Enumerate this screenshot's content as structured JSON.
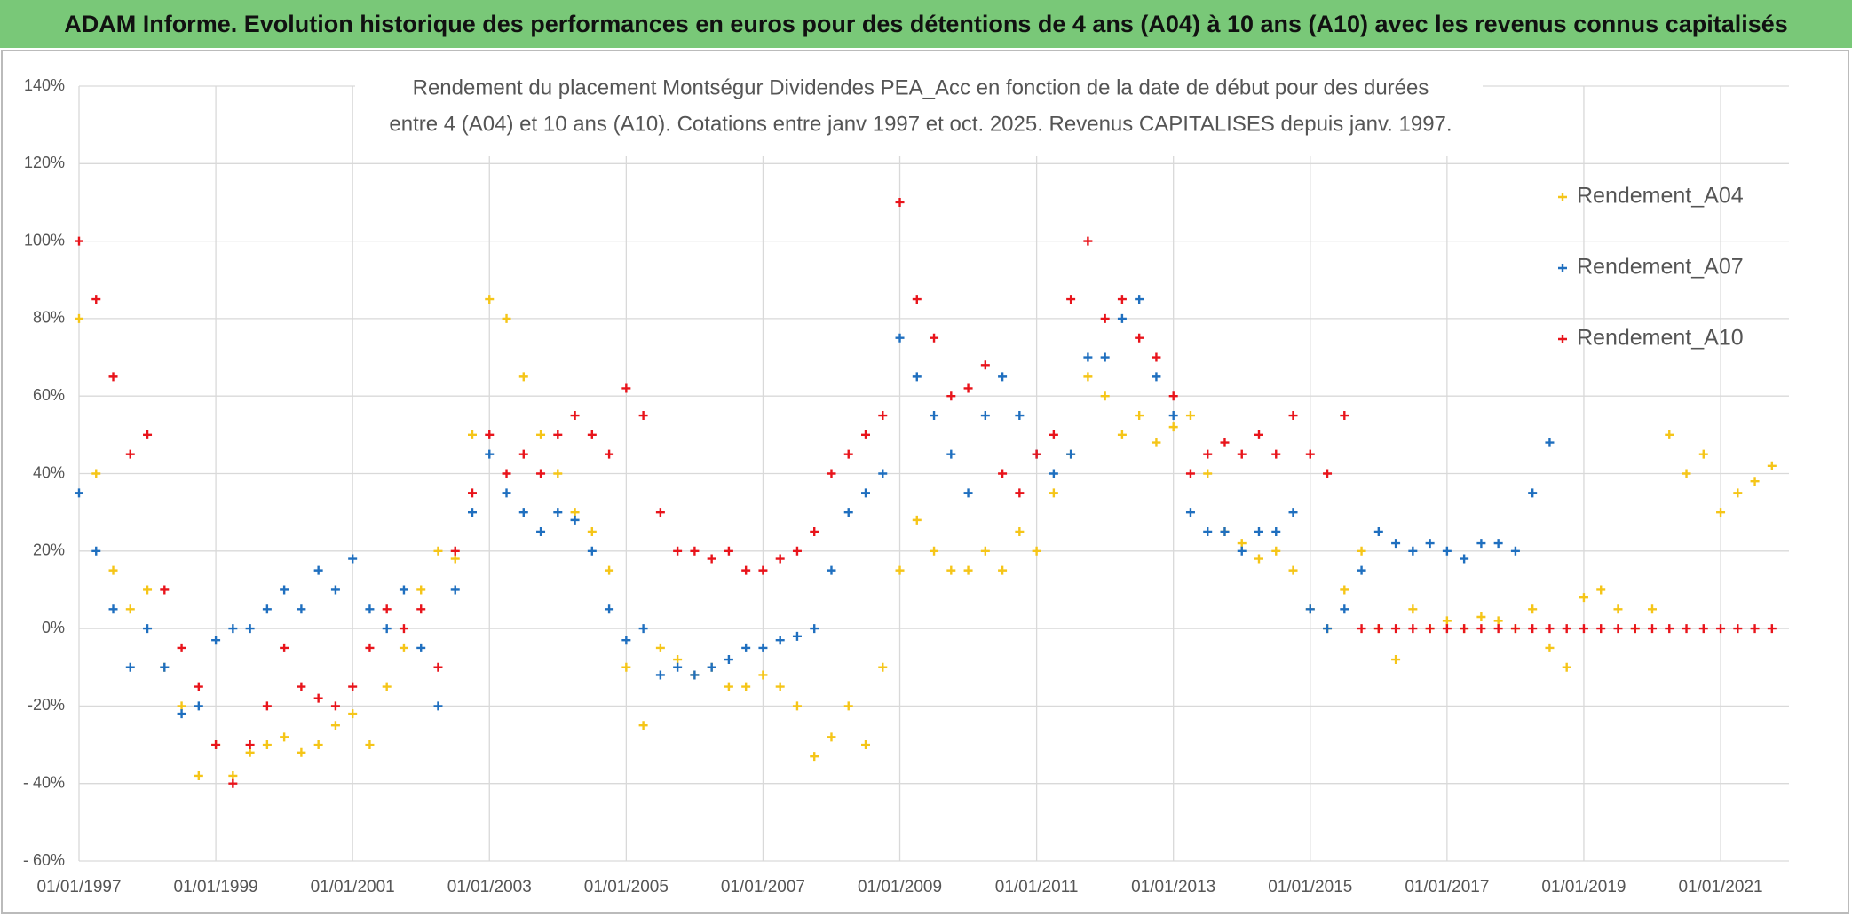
{
  "header": {
    "title": "ADAM Informe. Evolution historique des performances en euros pour des détentions de 4 ans (A04) à 10 ans (A10) avec les revenus connus capitalisés"
  },
  "chart_data": {
    "type": "scatter",
    "title": [
      "Rendement du placement Montségur Dividendes PEA_Acc en fonction de la date de début pour des durées",
      "entre 4 (A04) et 10 ans (A10). Cotations entre janv 1997 et oct. 2025. Revenus CAPITALISES depuis janv. 1997."
    ],
    "x": [
      "01/01/1997",
      "01/04/1997",
      "01/07/1997",
      "01/10/1997",
      "01/01/1998",
      "01/04/1998",
      "01/07/1998",
      "01/10/1998",
      "01/01/1999",
      "01/04/1999",
      "01/07/1999",
      "01/10/1999",
      "01/01/2000",
      "01/04/2000",
      "01/07/2000",
      "01/10/2000",
      "01/01/2001",
      "01/04/2001",
      "01/07/2001",
      "01/10/2001",
      "01/01/2002",
      "01/04/2002",
      "01/07/2002",
      "01/10/2002",
      "01/01/2003",
      "01/04/2003",
      "01/07/2003",
      "01/10/2003",
      "01/01/2004",
      "01/04/2004",
      "01/07/2004",
      "01/10/2004",
      "01/01/2005",
      "01/04/2005",
      "01/07/2005",
      "01/10/2005",
      "01/01/2006",
      "01/04/2006",
      "01/07/2006",
      "01/10/2006",
      "01/01/2007",
      "01/04/2007",
      "01/07/2007",
      "01/10/2007",
      "01/01/2008",
      "01/04/2008",
      "01/07/2008",
      "01/10/2008",
      "01/01/2009",
      "01/04/2009",
      "01/07/2009",
      "01/10/2009",
      "01/01/2010",
      "01/04/2010",
      "01/07/2010",
      "01/10/2010",
      "01/01/2011",
      "01/04/2011",
      "01/07/2011",
      "01/10/2011",
      "01/01/2012",
      "01/04/2012",
      "01/07/2012",
      "01/10/2012",
      "01/01/2013",
      "01/04/2013",
      "01/07/2013",
      "01/10/2013",
      "01/01/2014",
      "01/04/2014",
      "01/07/2014",
      "01/10/2014",
      "01/01/2015",
      "01/04/2015",
      "01/07/2015",
      "01/10/2015",
      "01/01/2016",
      "01/04/2016",
      "01/07/2016",
      "01/10/2016",
      "01/01/2017",
      "01/04/2017",
      "01/07/2017",
      "01/10/2017",
      "01/01/2018",
      "01/04/2018",
      "01/07/2018",
      "01/10/2018",
      "01/01/2019",
      "01/04/2019",
      "01/07/2019",
      "01/10/2019",
      "01/01/2020",
      "01/04/2020",
      "01/07/2020",
      "01/10/2020",
      "01/01/2021",
      "01/04/2021",
      "01/07/2021",
      "01/10/2021"
    ],
    "series": [
      {
        "name": "Rendement_A04",
        "color": "#f5c518",
        "values": [
          80,
          40,
          15,
          5,
          10,
          -10,
          -20,
          -38,
          -30,
          -38,
          -32,
          -30,
          -28,
          -32,
          -30,
          -25,
          -22,
          -30,
          -15,
          -5,
          10,
          20,
          18,
          50,
          85,
          80,
          65,
          50,
          40,
          30,
          25,
          15,
          -10,
          -25,
          -5,
          -8,
          -12,
          -10,
          -15,
          -15,
          -12,
          -15,
          -20,
          -33,
          -28,
          -20,
          -30,
          -10,
          15,
          28,
          20,
          15,
          15,
          20,
          15,
          25,
          20,
          35,
          45,
          65,
          60,
          50,
          55,
          48,
          52,
          55,
          40,
          25,
          22,
          18,
          20,
          15,
          5,
          0,
          10,
          20,
          0,
          -8,
          5,
          0,
          2,
          0,
          3,
          2,
          0,
          5,
          -5,
          -10,
          8,
          10,
          5,
          0,
          5,
          50,
          40,
          45,
          30,
          35,
          38,
          42
        ]
      },
      {
        "name": "Rendement_A07",
        "color": "#1f6fbf",
        "values": [
          35,
          20,
          5,
          -10,
          0,
          -10,
          -22,
          -20,
          -3,
          0,
          0,
          5,
          10,
          5,
          15,
          10,
          18,
          5,
          0,
          10,
          -5,
          -20,
          10,
          30,
          45,
          35,
          30,
          25,
          30,
          28,
          20,
          5,
          -3,
          0,
          -12,
          -10,
          -12,
          -10,
          -8,
          -5,
          -5,
          -3,
          -2,
          0,
          15,
          30,
          35,
          40,
          75,
          65,
          55,
          45,
          35,
          55,
          65,
          55,
          45,
          40,
          45,
          70,
          70,
          80,
          85,
          65,
          55,
          30,
          25,
          25,
          20,
          25,
          25,
          30,
          5,
          0,
          5,
          15,
          25,
          22,
          20,
          22,
          20,
          18,
          22,
          22,
          20,
          35,
          48,
          null,
          null,
          null,
          null,
          null,
          null,
          null,
          null,
          null,
          null,
          null,
          null,
          null
        ]
      },
      {
        "name": "Rendement_A10",
        "color": "#e8141b",
        "values": [
          100,
          85,
          65,
          45,
          50,
          10,
          -5,
          -15,
          -30,
          -40,
          -30,
          -20,
          -5,
          -15,
          -18,
          -20,
          -15,
          -5,
          5,
          0,
          5,
          -10,
          20,
          35,
          50,
          40,
          45,
          40,
          50,
          55,
          50,
          45,
          62,
          55,
          30,
          20,
          20,
          18,
          20,
          15,
          15,
          18,
          20,
          25,
          40,
          45,
          50,
          55,
          110,
          85,
          75,
          60,
          62,
          68,
          40,
          35,
          45,
          50,
          85,
          100,
          80,
          85,
          75,
          70,
          60,
          40,
          45,
          48,
          45,
          50,
          45,
          55,
          45,
          40,
          55,
          0,
          0,
          0,
          0,
          0,
          0,
          0,
          0,
          0,
          0,
          0,
          0,
          0,
          0,
          0,
          0,
          0,
          0,
          0,
          0,
          0,
          0,
          0,
          0,
          0
        ]
      }
    ],
    "xlim": [
      "01/01/1997",
      "31/12/2021"
    ],
    "xticks": [
      "01/01/1997",
      "01/01/1999",
      "01/01/2001",
      "01/01/2003",
      "01/01/2005",
      "01/01/2007",
      "01/01/2009",
      "01/01/2011",
      "01/01/2013",
      "01/01/2015",
      "01/01/2017",
      "01/01/2019",
      "01/01/2021"
    ],
    "ylim": [
      -60,
      140
    ],
    "yticks": [
      {
        "value": -60,
        "label": "- 60%"
      },
      {
        "value": -40,
        "label": "- 40%"
      },
      {
        "value": -20,
        "label": "-20%"
      },
      {
        "value": 0,
        "label": "0%"
      },
      {
        "value": 20,
        "label": "20%"
      },
      {
        "value": 40,
        "label": "40%"
      },
      {
        "value": 60,
        "label": "60%"
      },
      {
        "value": 80,
        "label": "80%"
      },
      {
        "value": 100,
        "label": "100%"
      },
      {
        "value": 120,
        "label": "120%"
      },
      {
        "value": 140,
        "label": "140%"
      }
    ],
    "grid": true,
    "legend": "right"
  }
}
